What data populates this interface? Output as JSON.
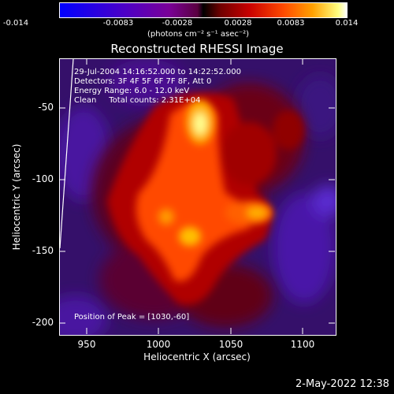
{
  "colorbar": {
    "ticks": [
      "-0.014",
      "-0.0083",
      "-0.0028",
      "0.0028",
      "0.0083",
      "0.014"
    ],
    "unit_label": "(photons cm⁻² s⁻¹ asec⁻²)"
  },
  "title": "Reconstructed RHESSI Image",
  "annotations": {
    "time": "29-Jul-2004 14:16:52.000 to 14:22:52.000",
    "detectors": "Detectors: 3F 4F 5F 6F 7F 8F, Att 0",
    "energy": "Energy Range: 6.0 - 12.0 keV",
    "clean": "Clean     Total counts: 2.31E+04",
    "peak": "Position of Peak = [1030,-60]"
  },
  "axes": {
    "xlabel": "Heliocentric X (arcsec)",
    "ylabel": "Heliocentric Y (arcsec)",
    "xticks": [
      "950",
      "1000",
      "1050",
      "1100"
    ],
    "yticks": [
      "-50",
      "-100",
      "-150",
      "-200"
    ]
  },
  "footer": {
    "timestamp": "2-May-2022 12:38"
  }
}
